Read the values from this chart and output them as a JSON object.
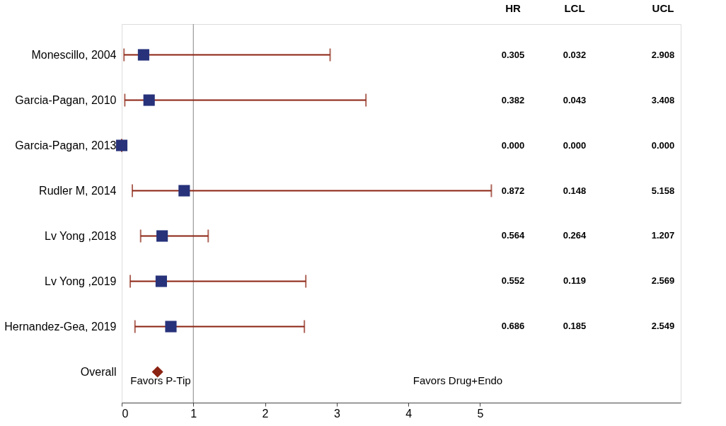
{
  "chart_data": {
    "type": "scatter",
    "orientation": "horizontal",
    "categories": [
      "Monescillo, 2004",
      "Garcia-Pagan, 2010",
      "Garcia-Pagan, 2013",
      "Rudler M, 2014",
      "Lv Yong ,2018",
      "Lv Yong ,2019",
      "Hernandez-Gea, 2019",
      "Overall"
    ],
    "series": [
      {
        "color": "#27327a",
        "marker": "square",
        "values": [
          0.305,
          0.382,
          0.0,
          0.872,
          0.564,
          0.552,
          0.686,
          null
        ],
        "errors": [
          [
            0.032,
            2.908
          ],
          [
            0.043,
            3.408
          ],
          [
            0.0,
            0.0
          ],
          [
            0.148,
            5.158
          ],
          [
            0.264,
            1.207
          ],
          [
            0.119,
            2.569
          ],
          [
            0.185,
            2.549
          ],
          null
        ]
      },
      {
        "color": "#8b2312",
        "marker": "diamond",
        "values": [
          null,
          null,
          null,
          null,
          null,
          null,
          null,
          0.5
        ]
      }
    ],
    "annotations": [
      "HR",
      "LCL",
      "UCL",
      "Favors P-Tip",
      "Favors Drug+Endo",
      "0.305",
      "0.032",
      "2.908",
      "0.382",
      "0.043",
      "3.408",
      "0.000",
      "0.000",
      "0.000",
      "0.872",
      "0.148",
      "5.158",
      "0.564",
      "0.264",
      "1.207",
      "0.552",
      "0.119",
      "2.569",
      "0.686",
      "0.185",
      "2.549"
    ],
    "ref_lines": [
      {
        "axis": "x",
        "value": 1,
        "color": "#999999"
      }
    ],
    "xlim": [
      0,
      7.8
    ],
    "xticks": [
      0,
      1,
      2,
      3,
      4,
      5
    ],
    "grid": false
  }
}
